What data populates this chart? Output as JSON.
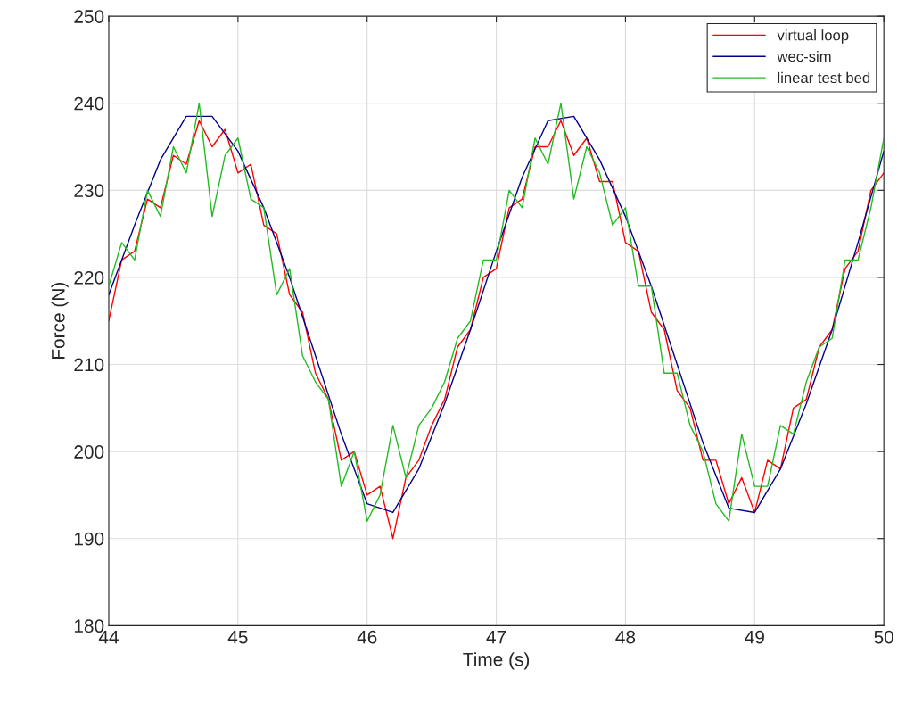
{
  "chart_data": {
    "type": "line",
    "xlabel": "Time (s)",
    "ylabel": "Force (N)",
    "xlim": [
      44,
      50
    ],
    "xticks": [
      44,
      45,
      46,
      47,
      48,
      49,
      50
    ],
    "ylim": [
      180,
      250
    ],
    "yticks": [
      180,
      190,
      200,
      210,
      220,
      230,
      240,
      250
    ],
    "grid": true,
    "legend": "top right",
    "marker": "none",
    "line_style": "solid",
    "series": [
      {
        "name": "virtual loop",
        "color": "#ff0000",
        "x": [
          44.0,
          44.1,
          44.2,
          44.3,
          44.4,
          44.5,
          44.6,
          44.7,
          44.8,
          44.9,
          45.0,
          45.1,
          45.2,
          45.3,
          45.4,
          45.5,
          45.6,
          45.7,
          45.8,
          45.9,
          46.0,
          46.1,
          46.2,
          46.3,
          46.4,
          46.5,
          46.6,
          46.7,
          46.8,
          46.9,
          47.0,
          47.1,
          47.2,
          47.3,
          47.4,
          47.5,
          47.6,
          47.7,
          47.8,
          47.9,
          48.0,
          48.1,
          48.2,
          48.3,
          48.4,
          48.5,
          48.6,
          48.7,
          48.8,
          48.9,
          49.0,
          49.1,
          49.2,
          49.3,
          49.4,
          49.5,
          49.6,
          49.7,
          49.8,
          49.9,
          50.0
        ],
        "values": [
          215,
          222,
          223,
          229,
          228,
          234,
          233,
          238,
          235,
          237,
          232,
          233,
          226,
          225,
          218,
          216,
          209,
          206,
          199,
          200,
          195,
          196,
          190,
          197,
          199,
          203,
          206,
          212,
          214,
          220,
          221,
          228,
          229,
          235,
          235,
          238,
          234,
          236,
          231,
          231,
          224,
          223,
          216,
          214,
          207,
          205,
          199,
          199,
          194,
          197,
          193,
          199,
          198,
          205,
          206,
          212,
          214,
          221,
          223,
          230,
          232
        ]
      },
      {
        "name": "wec-sim",
        "color": "#00008b",
        "x": [
          44.0,
          44.2,
          44.4,
          44.6,
          44.8,
          45.0,
          45.2,
          45.4,
          45.6,
          45.8,
          46.0,
          46.2,
          46.4,
          46.6,
          46.8,
          47.0,
          47.2,
          47.4,
          47.6,
          47.8,
          48.0,
          48.2,
          48.4,
          48.6,
          48.8,
          49.0,
          49.2,
          49.4,
          49.6,
          49.8,
          50.0
        ],
        "values": [
          218,
          226,
          233.5,
          238.5,
          238.5,
          234.5,
          228,
          220,
          211,
          202,
          194,
          193,
          198,
          205.5,
          214,
          223,
          231.5,
          238,
          238.5,
          233.5,
          227,
          219,
          210,
          201,
          193.5,
          193,
          198,
          205.5,
          214,
          224,
          234.5
        ]
      },
      {
        "name": "linear test bed",
        "color": "#22bb22",
        "x": [
          44.0,
          44.1,
          44.2,
          44.3,
          44.4,
          44.5,
          44.6,
          44.7,
          44.8,
          44.9,
          45.0,
          45.1,
          45.2,
          45.3,
          45.4,
          45.5,
          45.6,
          45.7,
          45.8,
          45.9,
          46.0,
          46.1,
          46.2,
          46.3,
          46.4,
          46.5,
          46.6,
          46.7,
          46.8,
          46.9,
          47.0,
          47.1,
          47.2,
          47.3,
          47.4,
          47.5,
          47.6,
          47.7,
          47.8,
          47.9,
          48.0,
          48.1,
          48.2,
          48.3,
          48.4,
          48.5,
          48.6,
          48.7,
          48.8,
          48.9,
          49.0,
          49.1,
          49.2,
          49.3,
          49.4,
          49.5,
          49.6,
          49.7,
          49.8,
          49.9,
          50.0
        ],
        "values": [
          219,
          224,
          222,
          230,
          227,
          235,
          232,
          240,
          227,
          234,
          236,
          229,
          228,
          218,
          221,
          211,
          208,
          206,
          196,
          200,
          192,
          195,
          203,
          197,
          203,
          205,
          208,
          213,
          215,
          222,
          222,
          230,
          228,
          236,
          233,
          240,
          229,
          235,
          232,
          226,
          228,
          219,
          219,
          209,
          209,
          203,
          200,
          194,
          192,
          202,
          196,
          196,
          203,
          202,
          208,
          212,
          213,
          222,
          222,
          228,
          236
        ]
      }
    ]
  }
}
